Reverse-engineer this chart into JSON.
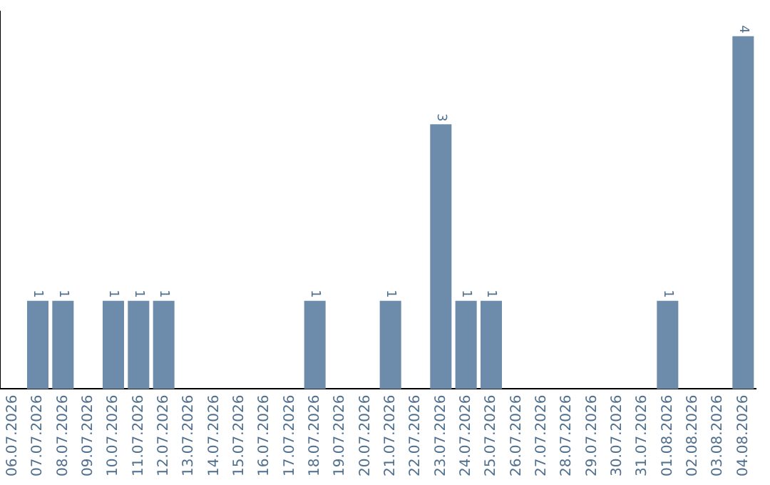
{
  "chart_data": {
    "type": "bar",
    "categories": [
      "06.07.2026",
      "07.07.2026",
      "08.07.2026",
      "09.07.2026",
      "10.07.2026",
      "11.07.2026",
      "12.07.2026",
      "13.07.2026",
      "14.07.2026",
      "15.07.2026",
      "16.07.2026",
      "17.07.2026",
      "18.07.2026",
      "19.07.2026",
      "20.07.2026",
      "21.07.2026",
      "22.07.2026",
      "23.07.2026",
      "24.07.2026",
      "25.07.2026",
      "26.07.2026",
      "27.07.2026",
      "28.07.2026",
      "29.07.2026",
      "30.07.2026",
      "31.07.2026",
      "01.08.2026",
      "02.08.2026",
      "03.08.2026",
      "04.08.2026"
    ],
    "values": [
      0,
      1,
      1,
      0,
      1,
      1,
      1,
      0,
      0,
      0,
      0,
      0,
      1,
      0,
      0,
      1,
      0,
      3,
      1,
      1,
      0,
      0,
      0,
      0,
      0,
      0,
      1,
      0,
      0,
      4
    ],
    "value_labels": [
      null,
      "1",
      "1",
      null,
      "1",
      "1",
      "1",
      null,
      null,
      null,
      null,
      null,
      "1",
      null,
      null,
      "1",
      null,
      "3",
      "1",
      "1",
      null,
      null,
      null,
      null,
      null,
      null,
      "1",
      null,
      null,
      "4"
    ],
    "color": "#6d8cab",
    "grid": false,
    "legend": false,
    "tick_labels": "x"
  }
}
